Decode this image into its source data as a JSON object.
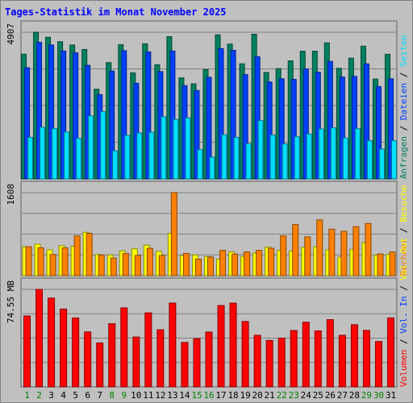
{
  "title": "Tages-Statistik im Monat November 2025",
  "colors": {
    "background": "#c0c0c0",
    "title": "#0000ff",
    "anfragen": "#008060",
    "dateien": "#0040ff",
    "seiten": "#00e0ff",
    "besuche": "#ffff00",
    "rechner": "#ff8000",
    "volume": "#ff0000",
    "weekend_day": "#008000",
    "weekday": "#000000"
  },
  "chart_data": [
    {
      "type": "bar",
      "name": "top",
      "ymax": 4907,
      "ymax_label": "4907",
      "right_label_parts": [
        {
          "text": "Anfragen",
          "color": "#008060"
        },
        {
          "text": " / ",
          "color": "#000000"
        },
        {
          "text": "Dateien",
          "color": "#0040ff"
        },
        {
          "text": " / ",
          "color": "#000000"
        },
        {
          "text": "Seiten",
          "color": "#00e0ff"
        }
      ],
      "series": [
        {
          "name": "Anfragen",
          "color": "#008060",
          "values": [
            4170,
            4907,
            4740,
            4590,
            4480,
            4330,
            3000,
            3890,
            4490,
            3550,
            4520,
            3820,
            4760,
            3380,
            3180,
            3660,
            4820,
            4510,
            3850,
            4840,
            3560,
            3690,
            3950,
            4270,
            4270,
            4550,
            3700,
            4040,
            4440,
            3340,
            4170
          ]
        },
        {
          "name": "Dateien",
          "color": "#0040ff",
          "values": [
            3720,
            4570,
            4480,
            4280,
            4220,
            3800,
            2820,
            3610,
            4290,
            3200,
            4250,
            3590,
            4280,
            3120,
            2960,
            3400,
            4360,
            4300,
            3490,
            4090,
            3240,
            3350,
            3330,
            3680,
            3570,
            3930,
            3410,
            3430,
            3850,
            3090,
            3350
          ]
        },
        {
          "name": "Seiten",
          "color": "#00e0ff",
          "values": [
            1390,
            1730,
            1680,
            1570,
            1360,
            2110,
            2250,
            940,
            1460,
            1540,
            1560,
            2080,
            1990,
            2040,
            980,
            730,
            1480,
            1390,
            1180,
            1950,
            1470,
            1170,
            1410,
            1500,
            1670,
            1710,
            1370,
            1680,
            1280,
            1000,
            1280
          ]
        }
      ]
    },
    {
      "type": "bar",
      "name": "middle",
      "ymax": 1608,
      "ymax_label": "1608",
      "right_label_parts": [
        {
          "text": "Rechner",
          "color": "#ff8000"
        },
        {
          "text": " / ",
          "color": "#000000"
        },
        {
          "text": "Besuche",
          "color": "#ffff00"
        }
      ],
      "series": [
        {
          "name": "Besuche",
          "color": "#ffff00",
          "values": [
            560,
            610,
            500,
            580,
            570,
            840,
            410,
            400,
            480,
            520,
            590,
            470,
            820,
            390,
            400,
            370,
            320,
            460,
            370,
            440,
            550,
            490,
            480,
            550,
            560,
            500,
            360,
            510,
            640,
            400,
            410
          ]
        },
        {
          "name": "Rechner",
          "color": "#ff8000",
          "values": [
            560,
            540,
            410,
            540,
            770,
            820,
            400,
            340,
            430,
            390,
            530,
            390,
            1608,
            430,
            320,
            360,
            490,
            420,
            460,
            490,
            530,
            770,
            990,
            750,
            1080,
            900,
            860,
            950,
            1010,
            420,
            460
          ]
        }
      ]
    },
    {
      "type": "bar",
      "name": "bottom",
      "ymax": 74.55,
      "ymax_label": "74.55 MB",
      "right_label_parts": [
        {
          "text": "Volumen",
          "color": "#ff0000"
        },
        {
          "text": " / ",
          "color": "#000000"
        },
        {
          "text": "Vol. In",
          "color": "#0040ff"
        },
        {
          "text": " / ",
          "color": "#000000"
        },
        {
          "text": "Vol. Out",
          "color": "#ffff00"
        }
      ],
      "series": [
        {
          "name": "Volumen",
          "color": "#ff0000",
          "values": [
            54.2,
            74.5,
            67.9,
            59.5,
            52.7,
            42.0,
            33.6,
            48.3,
            60.4,
            38.1,
            56.6,
            43.7,
            64.1,
            34.0,
            36.9,
            41.9,
            62.2,
            64.0,
            50.0,
            39.4,
            35.5,
            37.3,
            43.1,
            49.4,
            42.8,
            51.4,
            39.4,
            47.5,
            43.2,
            34.7,
            52.7
          ]
        }
      ]
    }
  ],
  "days": [
    {
      "label": "1",
      "weekend": true
    },
    {
      "label": "2",
      "weekend": true
    },
    {
      "label": "3",
      "weekend": false
    },
    {
      "label": "4",
      "weekend": false
    },
    {
      "label": "5",
      "weekend": false
    },
    {
      "label": "6",
      "weekend": false
    },
    {
      "label": "7",
      "weekend": false
    },
    {
      "label": "8",
      "weekend": true
    },
    {
      "label": "9",
      "weekend": true
    },
    {
      "label": "10",
      "weekend": false
    },
    {
      "label": "11",
      "weekend": false
    },
    {
      "label": "12",
      "weekend": false
    },
    {
      "label": "13",
      "weekend": false
    },
    {
      "label": "14",
      "weekend": false
    },
    {
      "label": "15",
      "weekend": true
    },
    {
      "label": "16",
      "weekend": true
    },
    {
      "label": "17",
      "weekend": false
    },
    {
      "label": "18",
      "weekend": false
    },
    {
      "label": "19",
      "weekend": false
    },
    {
      "label": "20",
      "weekend": false
    },
    {
      "label": "21",
      "weekend": false
    },
    {
      "label": "22",
      "weekend": true
    },
    {
      "label": "23",
      "weekend": true
    },
    {
      "label": "24",
      "weekend": false
    },
    {
      "label": "25",
      "weekend": false
    },
    {
      "label": "26",
      "weekend": false
    },
    {
      "label": "27",
      "weekend": false
    },
    {
      "label": "28",
      "weekend": false
    },
    {
      "label": "29",
      "weekend": true
    },
    {
      "label": "30",
      "weekend": true
    },
    {
      "label": "31",
      "weekend": false
    }
  ]
}
